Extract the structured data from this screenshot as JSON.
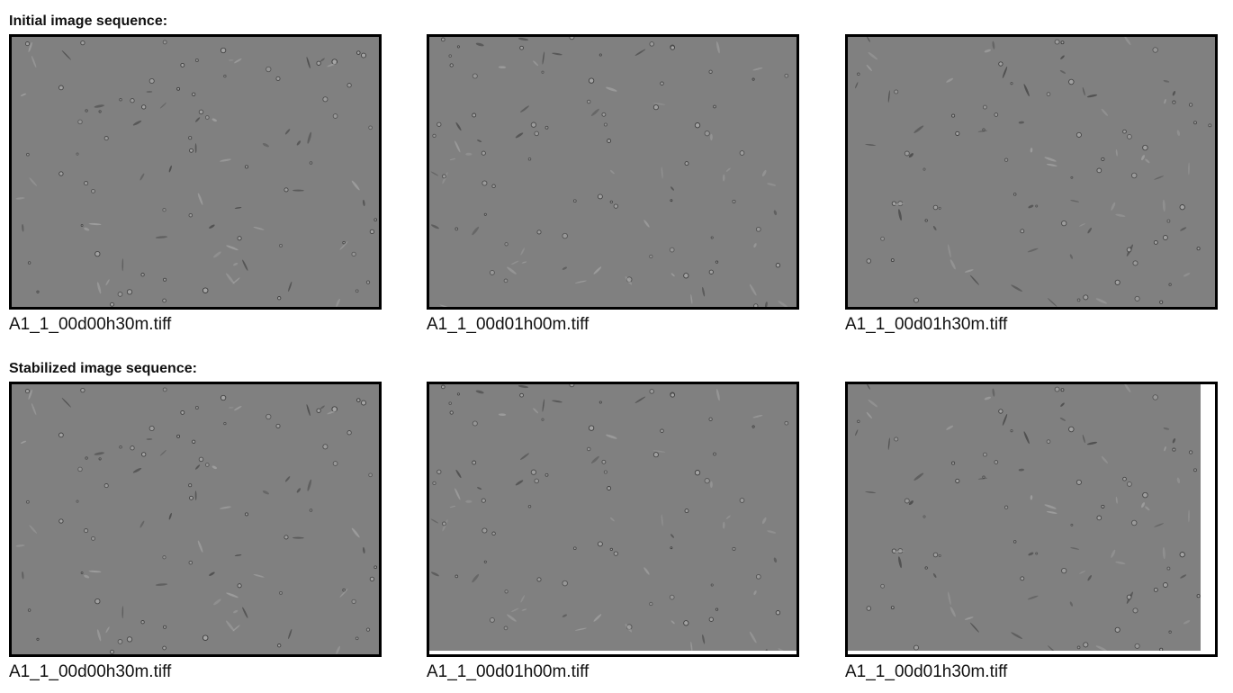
{
  "sections": [
    {
      "title": "Initial image sequence:",
      "images": [
        {
          "filename": "A1_1_00d00h30m.tiff"
        },
        {
          "filename": "A1_1_00d01h00m.tiff"
        },
        {
          "filename": "A1_1_00d01h30m.tiff"
        }
      ]
    },
    {
      "title": "Stabilized image sequence:",
      "images": [
        {
          "filename": "A1_1_00d00h30m.tiff"
        },
        {
          "filename": "A1_1_00d01h00m.tiff"
        },
        {
          "filename": "A1_1_00d01h30m.tiff"
        }
      ]
    }
  ],
  "colors": {
    "image_background": "#808080",
    "frame_border": "#000000",
    "stabilization_padding": "#ffffff",
    "cell_dark": "#3a3a3a",
    "cell_light": "#a8a8a8"
  }
}
